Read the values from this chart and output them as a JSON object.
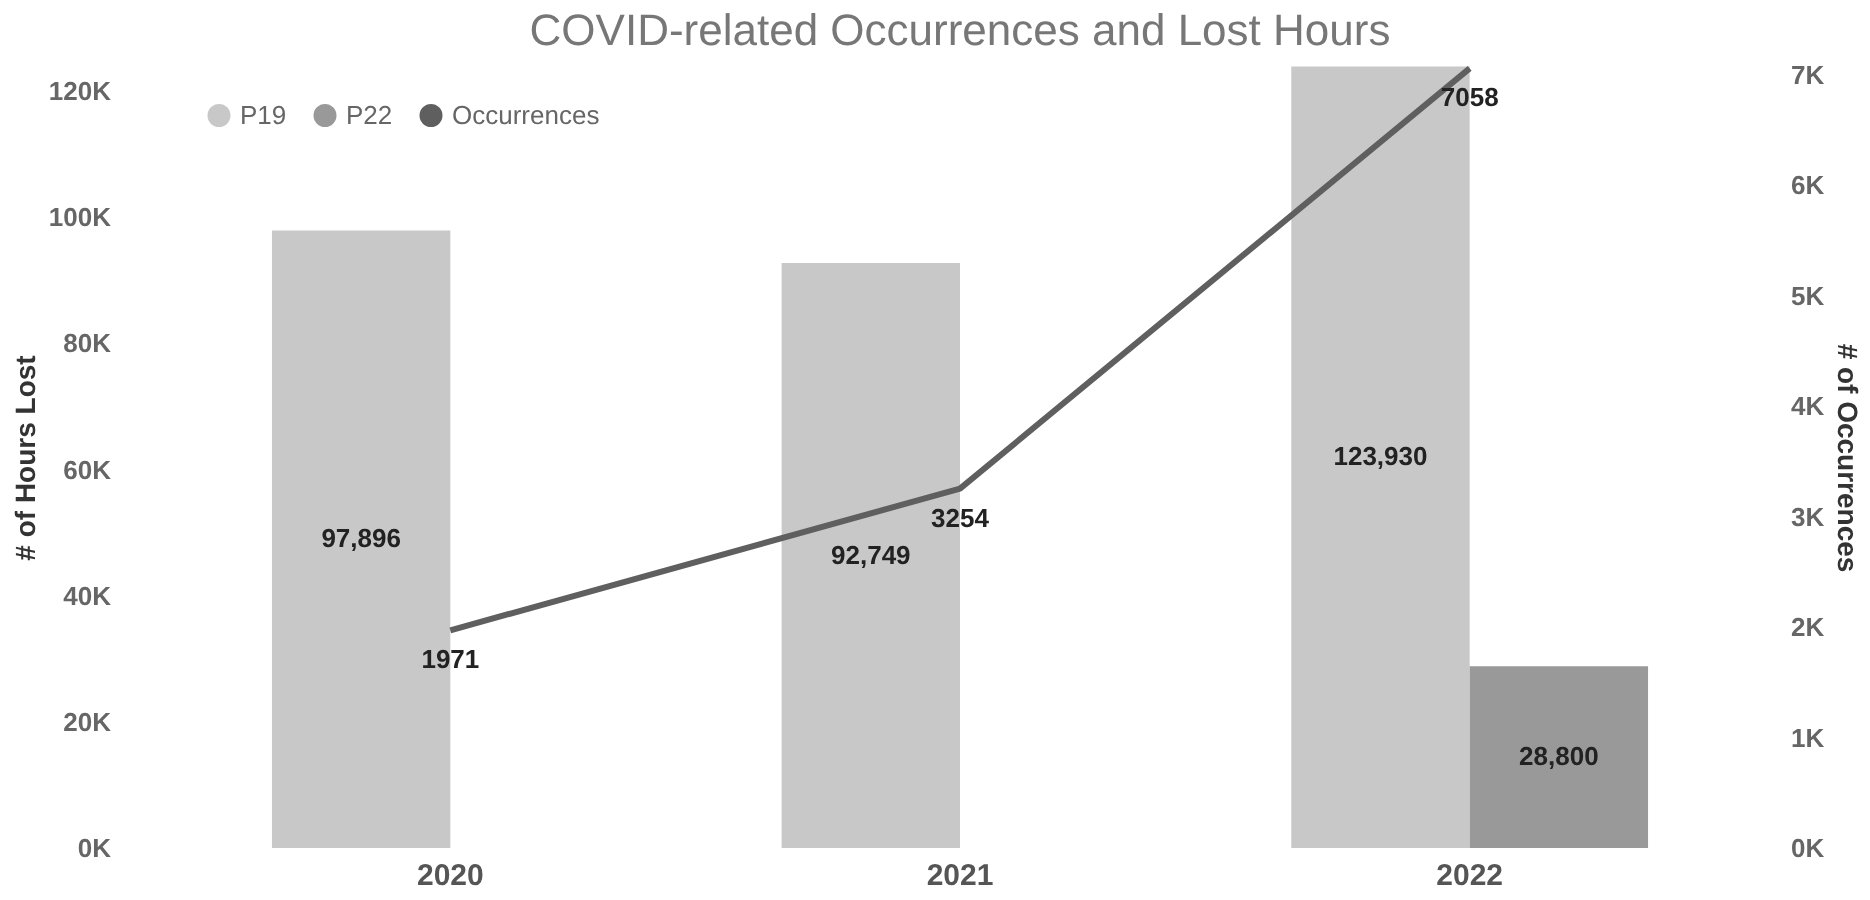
{
  "chart_data": {
    "type": "bar",
    "title": "COVID-related Occurrences and Lost Hours",
    "categories": [
      "2020",
      "2021",
      "2022"
    ],
    "series": [
      {
        "name": "P19",
        "color": "#c8c8c8",
        "values": [
          97896,
          92749,
          123930
        ],
        "value_labels": [
          "97,896",
          "92,749",
          "123,930"
        ]
      },
      {
        "name": "P22",
        "color": "#999999",
        "values": [
          null,
          null,
          28800
        ],
        "value_labels": [
          null,
          null,
          "28,800"
        ]
      },
      {
        "name": "Occurrences",
        "color": "#5f5f5f",
        "type": "line",
        "axis": "y2",
        "values": [
          1971,
          3254,
          7058
        ]
      }
    ],
    "ylabel": "# of Hours Lost",
    "y2label": "# of Occurrences",
    "ylim": [
      0,
      124000
    ],
    "yticks": [
      {
        "value": 0,
        "label": "0K"
      },
      {
        "value": 20000,
        "label": "20K"
      },
      {
        "value": 40000,
        "label": "40K"
      },
      {
        "value": 60000,
        "label": "60K"
      },
      {
        "value": 80000,
        "label": "80K"
      },
      {
        "value": 100000,
        "label": "100K"
      },
      {
        "value": 120000,
        "label": "120K"
      }
    ],
    "y2lim": [
      0,
      7080
    ],
    "y2ticks": [
      {
        "value": 0,
        "label": "0K"
      },
      {
        "value": 1000,
        "label": "1K"
      },
      {
        "value": 2000,
        "label": "2K"
      },
      {
        "value": 3000,
        "label": "3K"
      },
      {
        "value": 4000,
        "label": "4K"
      },
      {
        "value": 5000,
        "label": "5K"
      },
      {
        "value": 6000,
        "label": "6K"
      },
      {
        "value": 7000,
        "label": "7K"
      }
    ],
    "data_labels": true,
    "legend": "top left",
    "grid": false
  }
}
